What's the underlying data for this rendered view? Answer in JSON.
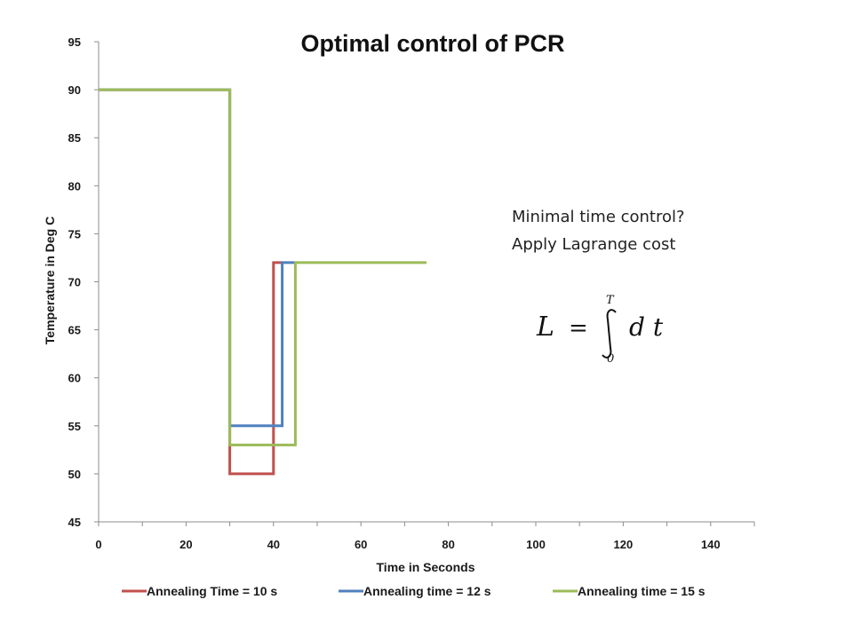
{
  "chart_data": {
    "type": "line",
    "title": "Optimal control of PCR",
    "xlabel": "Time in Seconds",
    "ylabel": "Temperature in Deg C",
    "xlim": [
      0,
      150
    ],
    "ylim": [
      45,
      95
    ],
    "xticks": [
      0,
      20,
      40,
      60,
      80,
      100,
      120,
      140
    ],
    "yticks": [
      45,
      50,
      55,
      60,
      65,
      70,
      75,
      80,
      85,
      90,
      95
    ],
    "grid": false,
    "legend_position": "bottom",
    "series": [
      {
        "name": "Annealing Time = 10 s",
        "color": "#c0504d",
        "x": [
          0,
          30,
          30,
          40,
          40,
          42
        ],
        "y": [
          90,
          90,
          50,
          50,
          72,
          72
        ]
      },
      {
        "name": "Annealing time = 12 s",
        "color": "#4f81bd",
        "x": [
          0,
          30,
          30,
          42,
          42,
          45
        ],
        "y": [
          90,
          90,
          55,
          55,
          72,
          72
        ]
      },
      {
        "name": "Annealing time = 15 s",
        "color": "#9bbb59",
        "x": [
          0,
          30,
          30,
          45,
          45,
          75
        ],
        "y": [
          90,
          90,
          53,
          53,
          72,
          72
        ]
      }
    ],
    "annotations": [
      "Minimal time control?",
      "Apply Lagrange cost"
    ],
    "formula": {
      "lhs": "L",
      "equals": "=",
      "upper_limit": "T",
      "lower_limit": "0",
      "integrand": "d t"
    }
  }
}
